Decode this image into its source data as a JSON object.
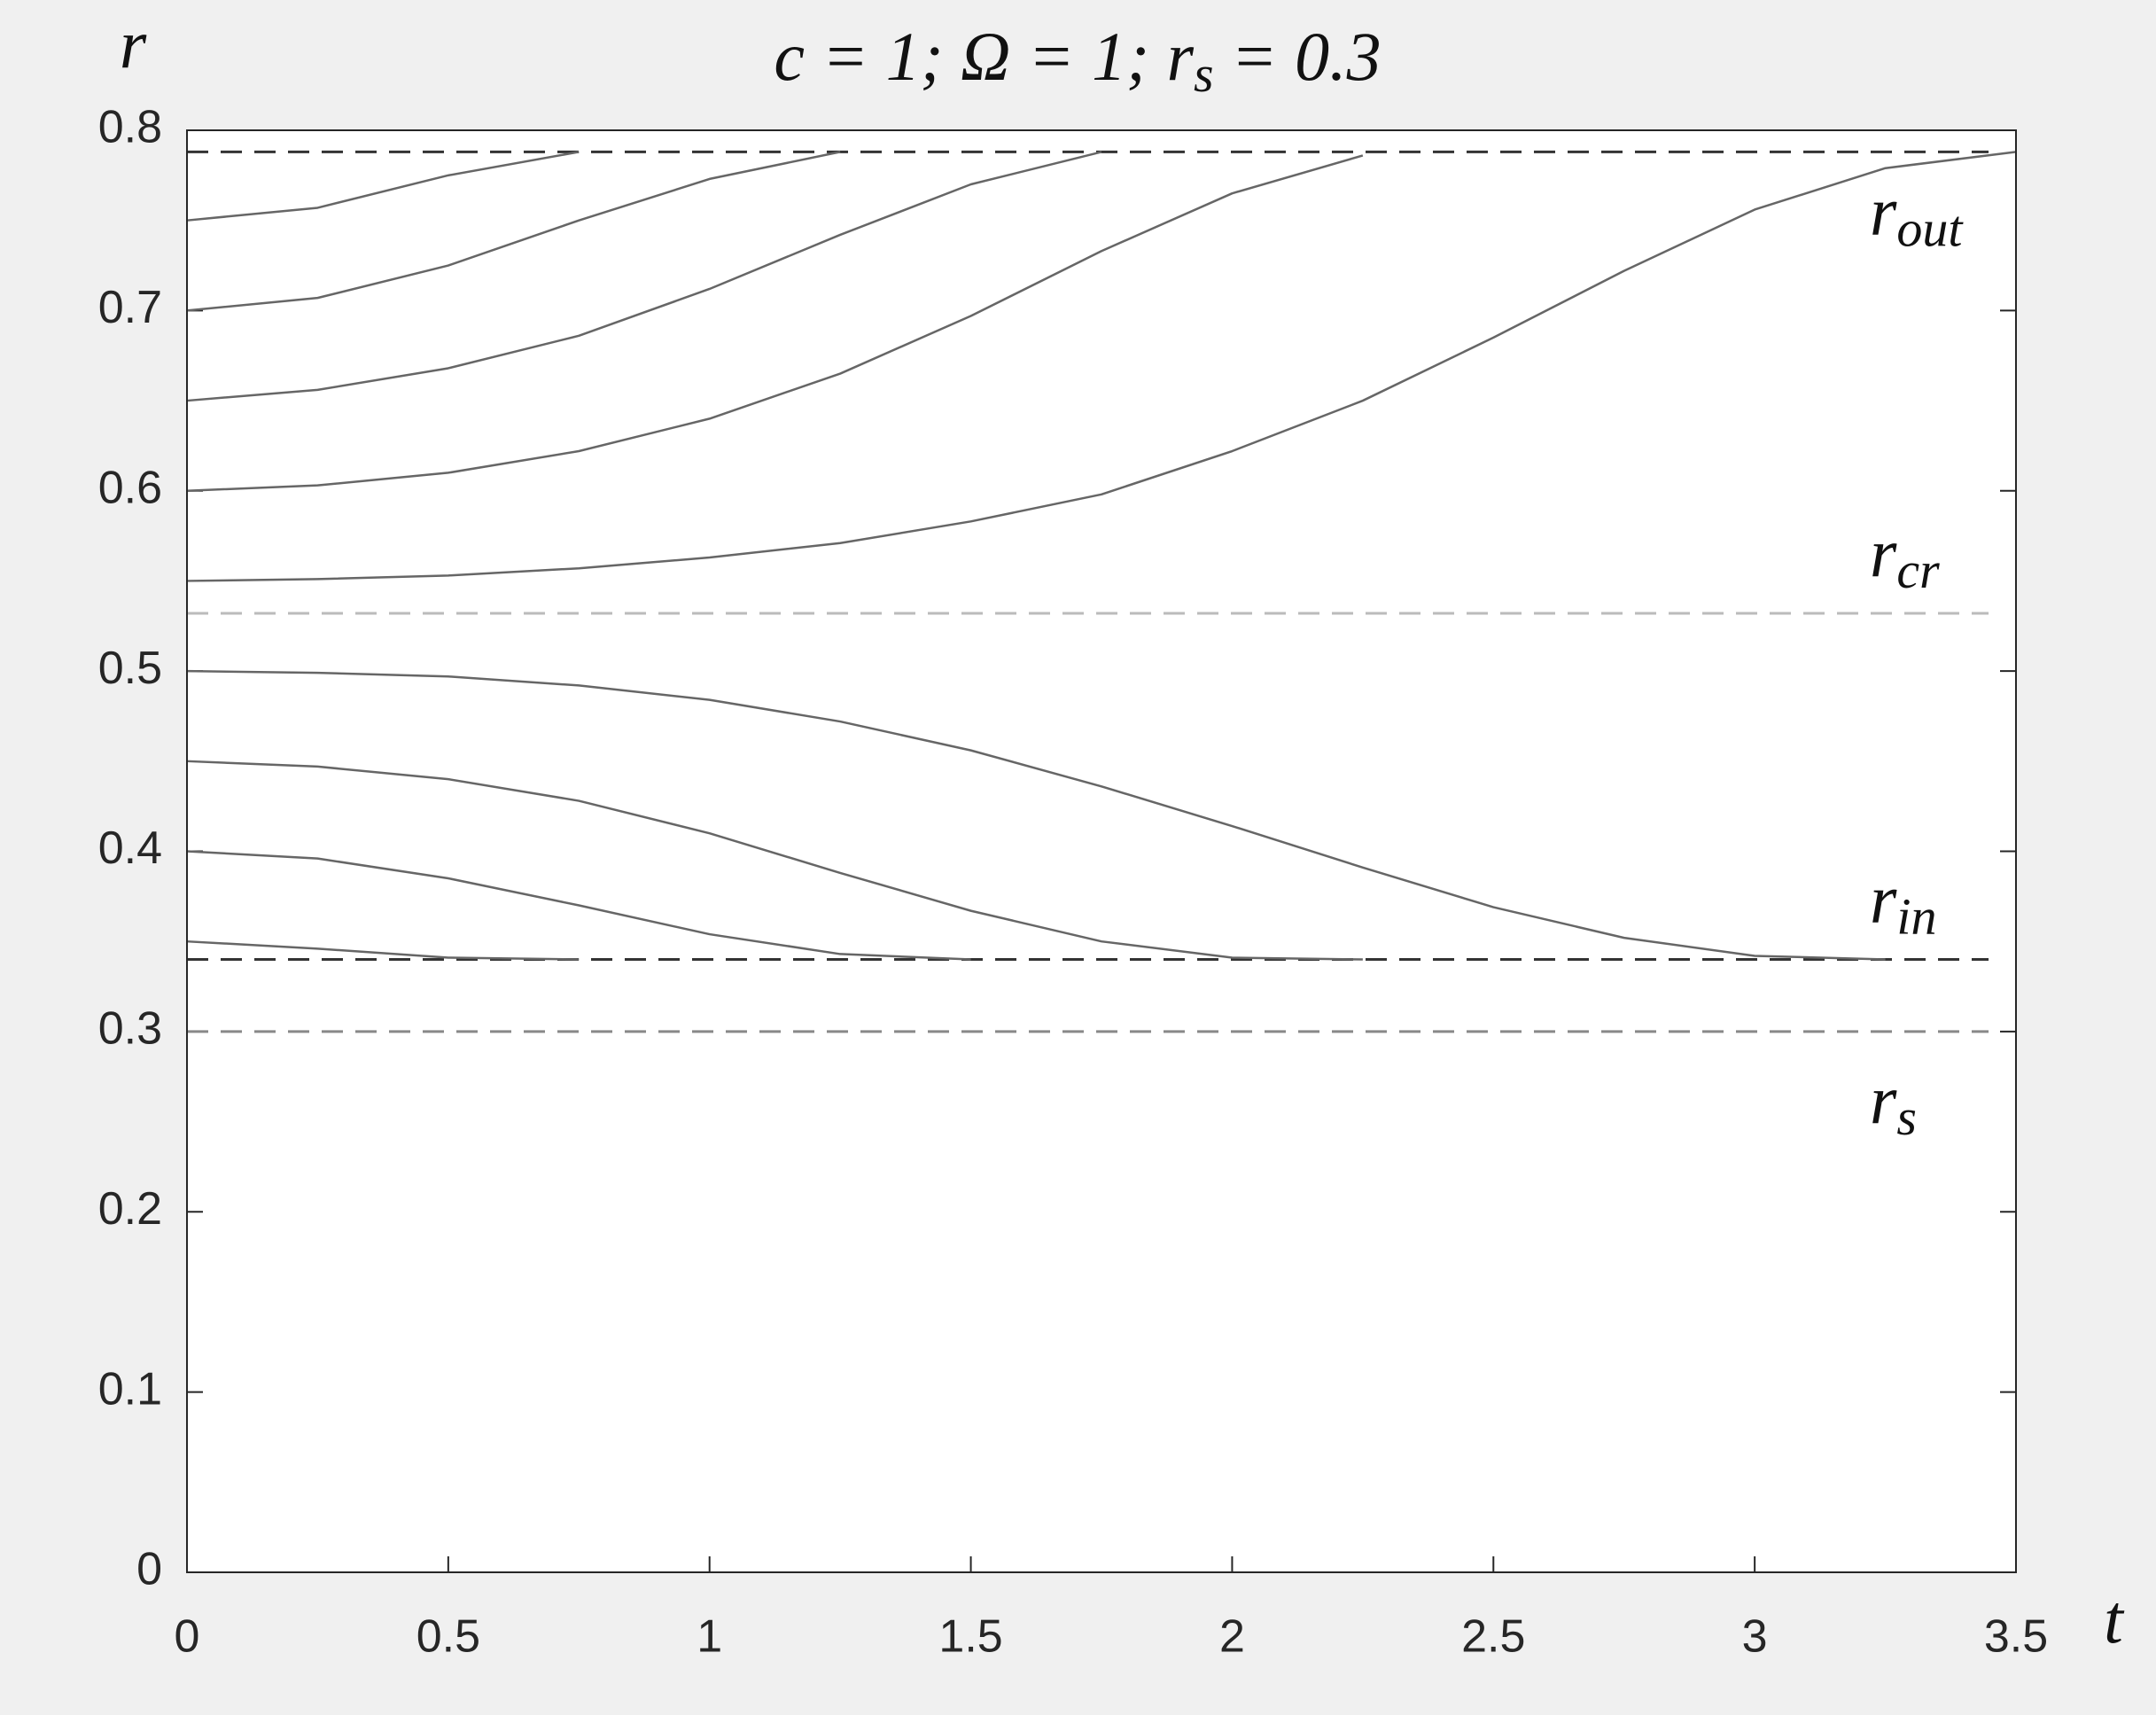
{
  "chart_data": {
    "type": "line",
    "title": {
      "main": "c = 1; Ω = 1; r",
      "sub": "s",
      "tail": " = 0.3"
    },
    "x_label": "t",
    "y_label": "r",
    "x": [
      0,
      0.25,
      0.5,
      0.75,
      1,
      1.25,
      1.5,
      1.75,
      2,
      2.25,
      2.5,
      2.75,
      3,
      3.25,
      3.5
    ],
    "series": [
      {
        "color": "#666666",
        "values": [
          0.75,
          0.757,
          0.775,
          0.788,
          null,
          null,
          null,
          null,
          null,
          null,
          null,
          null,
          null,
          null,
          null
        ]
      },
      {
        "color": "#666666",
        "values": [
          0.7,
          0.707,
          0.725,
          0.75,
          0.773,
          0.788,
          null,
          null,
          null,
          null,
          null,
          null,
          null,
          null,
          null
        ]
      },
      {
        "color": "#666666",
        "values": [
          0.65,
          0.656,
          0.668,
          0.686,
          0.712,
          0.742,
          0.77,
          0.788,
          null,
          null,
          null,
          null,
          null,
          null,
          null
        ]
      },
      {
        "color": "#666666",
        "values": [
          0.6,
          0.603,
          0.61,
          0.622,
          0.64,
          0.665,
          0.697,
          0.733,
          0.765,
          0.786,
          null,
          null,
          null,
          null,
          null
        ]
      },
      {
        "color": "#666666",
        "values": [
          0.55,
          0.551,
          0.553,
          0.557,
          0.563,
          0.571,
          0.583,
          0.598,
          0.622,
          0.65,
          0.685,
          0.722,
          0.756,
          0.779,
          0.788
        ]
      },
      {
        "color": "#666666",
        "values": [
          0.5,
          0.499,
          0.497,
          0.492,
          0.484,
          0.472,
          0.456,
          0.436,
          0.414,
          0.391,
          0.369,
          0.352,
          0.342,
          0.34,
          null
        ]
      },
      {
        "color": "#666666",
        "values": [
          0.45,
          0.447,
          0.44,
          0.428,
          0.41,
          0.388,
          0.367,
          0.35,
          0.341,
          0.34,
          null,
          null,
          null,
          null,
          null
        ]
      },
      {
        "color": "#666666",
        "values": [
          0.4,
          0.396,
          0.385,
          0.37,
          0.354,
          0.343,
          0.34,
          null,
          null,
          null,
          null,
          null,
          null,
          null,
          null
        ]
      },
      {
        "color": "#666666",
        "values": [
          0.35,
          0.346,
          0.341,
          0.34,
          null,
          null,
          null,
          null,
          null,
          null,
          null,
          null,
          null,
          null,
          null
        ]
      }
    ],
    "reference_lines": [
      {
        "value": 0.788,
        "color": "#333333",
        "base": "r",
        "sub": "out"
      },
      {
        "value": 0.532,
        "color": "#bbbbbb",
        "base": "r",
        "sub": "cr"
      },
      {
        "value": 0.34,
        "color": "#333333",
        "base": "r",
        "sub": "in"
      },
      {
        "value": 0.3,
        "color": "#888888",
        "base": "r",
        "sub": "s"
      }
    ],
    "xlim": [
      0,
      3.5
    ],
    "xticks": [
      0,
      0.5,
      1,
      1.5,
      2,
      2.5,
      3,
      3.5
    ],
    "ylim": [
      0,
      0.8
    ],
    "yticks": [
      0,
      0.1,
      0.2,
      0.3,
      0.4,
      0.5,
      0.6,
      0.7,
      0.8
    ]
  }
}
